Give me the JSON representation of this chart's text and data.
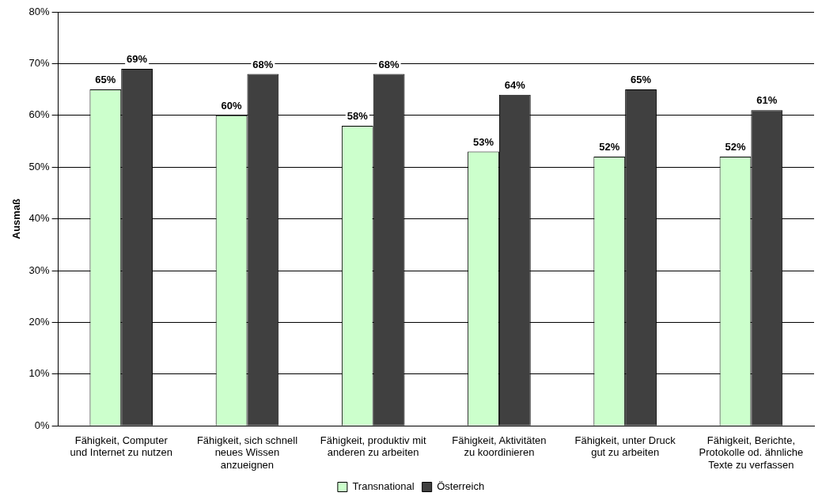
{
  "chart_data": {
    "type": "bar",
    "ylabel": "Ausmaß",
    "categories": [
      "Fähigkeit, Computer und Internet zu nutzen",
      "Fähigkeit, sich schnell neues Wissen anzueignen",
      "Fähigkeit, produktiv mit anderen zu arbeiten",
      "Fähigkeit, Aktivitäten zu koordinieren",
      "Fähigkeit, unter Druck gut zu arbeiten",
      "Fähigkeit, Berichte, Protokolle od. ähnliche Texte zu verfassen"
    ],
    "series": [
      {
        "name": "Transnational",
        "color": "#ccffcc",
        "values": [
          65,
          60,
          58,
          53,
          52,
          52
        ],
        "value_labels": [
          "65%",
          "60%",
          "58%",
          "53%",
          "52%",
          "52%"
        ]
      },
      {
        "name": "Österreich",
        "color": "#404040",
        "values": [
          69,
          68,
          68,
          64,
          65,
          61
        ],
        "value_labels": [
          "69%",
          "68%",
          "68%",
          "64%",
          "65%",
          "61%"
        ]
      }
    ],
    "ylim": [
      0,
      80
    ],
    "yticks": [
      {
        "value": 0,
        "label": "0%"
      },
      {
        "value": 10,
        "label": "10%"
      },
      {
        "value": 20,
        "label": "20%"
      },
      {
        "value": 30,
        "label": "30%"
      },
      {
        "value": 40,
        "label": "40%"
      },
      {
        "value": 50,
        "label": "50%"
      },
      {
        "value": 60,
        "label": "60%"
      },
      {
        "value": 70,
        "label": "70%"
      },
      {
        "value": 80,
        "label": "80%"
      }
    ],
    "grid": "y",
    "legend": "bottom"
  }
}
